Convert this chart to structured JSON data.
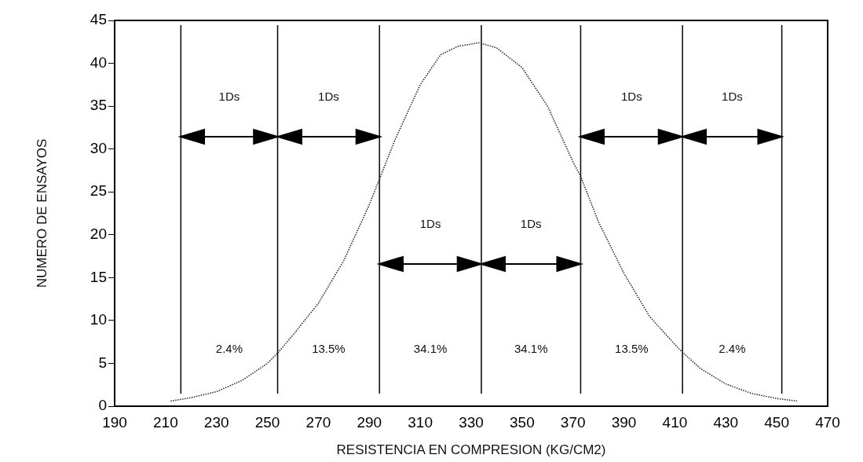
{
  "chart_data": {
    "type": "line",
    "xlabel": "RESISTENCIA EN COMPRESION (KG/CM2)",
    "ylabel": "NUMERO DE ENSAYOS",
    "series": [
      {
        "color": "#222222",
        "x": [
          212,
          220,
          230,
          240,
          250,
          254,
          260,
          270,
          280,
          290,
          294,
          300,
          310,
          318,
          325,
          333,
          340,
          350,
          360,
          370,
          373,
          380,
          390,
          400,
          410,
          413,
          420,
          430,
          440,
          450,
          458
        ],
        "values": [
          0.6,
          1.0,
          1.7,
          3.0,
          5.0,
          6.2,
          8.3,
          12.0,
          17.0,
          23.5,
          26.5,
          31,
          37.5,
          41,
          42,
          42.4,
          41.8,
          39.5,
          35,
          28.5,
          26.8,
          21.5,
          15.5,
          10.5,
          7.2,
          6.3,
          4.4,
          2.6,
          1.5,
          0.9,
          0.6
        ]
      }
    ],
    "xlim": [
      190,
      470
    ],
    "xticks": [
      190,
      210,
      230,
      250,
      270,
      290,
      310,
      330,
      350,
      370,
      390,
      410,
      430,
      450,
      470
    ],
    "ylim": [
      0,
      45
    ],
    "yticks": [
      0,
      5,
      10,
      15,
      20,
      25,
      30,
      35,
      40,
      45
    ],
    "ref_lines": [
      {
        "axis": "x",
        "value": 216,
        "color": "#111111"
      },
      {
        "axis": "x",
        "value": 254,
        "color": "#111111"
      },
      {
        "axis": "x",
        "value": 294,
        "color": "#111111"
      },
      {
        "axis": "x",
        "value": 334,
        "color": "#111111"
      },
      {
        "axis": "x",
        "value": 373,
        "color": "#111111"
      },
      {
        "axis": "x",
        "value": 413,
        "color": "#111111"
      },
      {
        "axis": "x",
        "value": 452,
        "color": "#111111"
      }
    ],
    "annotations": [
      "1Ds",
      "1Ds",
      "1Ds",
      "1Ds",
      "1Ds",
      "1Ds",
      "2.4%",
      "13.5%",
      "34.1%",
      "34.1%",
      "13.5%",
      "2.4%"
    ],
    "grid": false,
    "legend": false,
    "marker": "none",
    "line_style": "dotted"
  }
}
